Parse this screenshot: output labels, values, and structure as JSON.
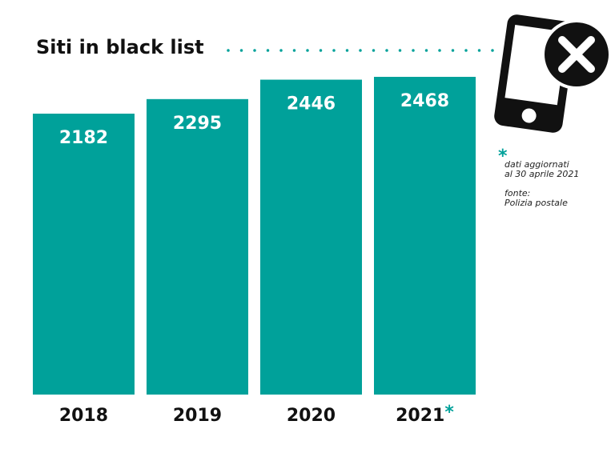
{
  "chart_data": {
    "type": "bar",
    "title": "Siti in black list",
    "categories": [
      "2018",
      "2019",
      "2020",
      "2021"
    ],
    "values": [
      2182,
      2295,
      2446,
      2468
    ],
    "color": "#00a19a",
    "footnote": {
      "marker": "*",
      "applies_to": 3,
      "lines": [
        "dati aggiornati",
        "al 30 aprile 2021"
      ]
    },
    "source": [
      "fonte:",
      "Polizia postale"
    ]
  }
}
